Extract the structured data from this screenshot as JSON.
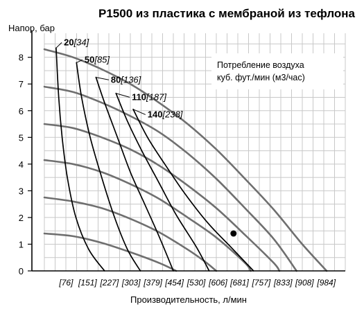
{
  "chart_data": {
    "type": "line",
    "title": "P1500 из пластика с мембраной из тефлона",
    "ylabel": "Напор, бар",
    "xlabel": "Производительность, л/мин",
    "yticks": [
      "0",
      "1",
      "2",
      "3",
      "4",
      "5",
      "6",
      "7",
      "8"
    ],
    "xticks": [
      "[76]",
      "[151]",
      "[227]",
      "[303]",
      "[379]",
      "[454]",
      "[530]",
      "[606]",
      "[681]",
      "[757]",
      "[833]",
      "[908]",
      "[984]"
    ],
    "xlim": [
      0,
      1050
    ],
    "ylim": [
      0,
      8.9
    ],
    "grid": true,
    "colors": {
      "pressure_curve": "#6f6f6f",
      "air_curve": "#000000",
      "grid": "#c8c8c8",
      "axis": "#000000"
    },
    "legend": {
      "position": "top-right",
      "lines": [
        "Потребление воздуха",
        "куб. фут./мин (м3/час)"
      ]
    },
    "operating_point": {
      "x": 660,
      "y": 1.4
    },
    "pressure_curves": [
      {
        "points": [
          [
            0,
            8.3
          ],
          [
            100,
            8.0
          ],
          [
            200,
            7.55
          ],
          [
            300,
            7.0
          ],
          [
            400,
            6.3
          ],
          [
            500,
            5.5
          ],
          [
            600,
            4.55
          ],
          [
            700,
            3.45
          ],
          [
            800,
            2.3
          ],
          [
            900,
            1.0
          ],
          [
            985,
            0
          ]
        ]
      },
      {
        "points": [
          [
            0,
            6.9
          ],
          [
            100,
            6.7
          ],
          [
            200,
            6.3
          ],
          [
            300,
            5.8
          ],
          [
            400,
            5.2
          ],
          [
            500,
            4.4
          ],
          [
            600,
            3.45
          ],
          [
            700,
            2.35
          ],
          [
            800,
            1.2
          ],
          [
            880,
            0
          ]
        ]
      },
      {
        "points": [
          [
            0,
            5.5
          ],
          [
            100,
            5.35
          ],
          [
            200,
            5.0
          ],
          [
            300,
            4.55
          ],
          [
            400,
            3.95
          ],
          [
            500,
            3.2
          ],
          [
            600,
            2.35
          ],
          [
            700,
            1.35
          ],
          [
            800,
            0.3
          ],
          [
            820,
            0
          ]
        ]
      },
      {
        "points": [
          [
            0,
            4.15
          ],
          [
            100,
            4.0
          ],
          [
            200,
            3.7
          ],
          [
            300,
            3.25
          ],
          [
            400,
            2.7
          ],
          [
            500,
            2.0
          ],
          [
            600,
            1.25
          ],
          [
            700,
            0.3
          ],
          [
            720,
            0
          ]
        ]
      },
      {
        "points": [
          [
            0,
            2.75
          ],
          [
            100,
            2.6
          ],
          [
            200,
            2.35
          ],
          [
            300,
            1.95
          ],
          [
            400,
            1.45
          ],
          [
            500,
            0.8
          ],
          [
            560,
            0.35
          ],
          [
            600,
            0
          ]
        ]
      },
      {
        "points": [
          [
            0,
            1.4
          ],
          [
            100,
            1.3
          ],
          [
            200,
            1.05
          ],
          [
            300,
            0.7
          ],
          [
            400,
            0.3
          ],
          [
            460,
            0
          ]
        ]
      }
    ],
    "air_curves": [
      {
        "label_bold": "20",
        "label_italic": "[34]",
        "label_at": [
          68,
          8.45
        ],
        "start": [
          41,
          8.35
        ],
        "points": [
          [
            41,
            8.35
          ],
          [
            50,
            6.5
          ],
          [
            62,
            5.0
          ],
          [
            80,
            3.5
          ],
          [
            110,
            2.0
          ],
          [
            155,
            0.8
          ],
          [
            210,
            0
          ]
        ]
      },
      {
        "label_bold": "50",
        "label_italic": "[85]",
        "label_at": [
          140,
          7.8
        ],
        "start": [
          112,
          7.8
        ],
        "points": [
          [
            112,
            7.8
          ],
          [
            130,
            6.5
          ],
          [
            160,
            5.0
          ],
          [
            200,
            3.5
          ],
          [
            245,
            2.0
          ],
          [
            290,
            0.8
          ],
          [
            335,
            0
          ]
        ]
      },
      {
        "label_bold": "80",
        "label_italic": "[136]",
        "label_at": [
          232,
          7.05
        ],
        "start": [
          180,
          7.25
        ],
        "points": [
          [
            180,
            7.25
          ],
          [
            210,
            6.3
          ],
          [
            255,
            5.0
          ],
          [
            300,
            3.7
          ],
          [
            350,
            2.5
          ],
          [
            400,
            1.3
          ],
          [
            450,
            0
          ]
        ]
      },
      {
        "label_bold": "110",
        "label_italic": "[187]",
        "label_at": [
          305,
          6.4
        ],
        "start": [
          250,
          6.65
        ],
        "points": [
          [
            250,
            6.65
          ],
          [
            290,
            5.6
          ],
          [
            340,
            4.5
          ],
          [
            400,
            3.3
          ],
          [
            460,
            2.1
          ],
          [
            530,
            0.9
          ],
          [
            575,
            0
          ]
        ]
      },
      {
        "label_bold": "140",
        "label_italic": "[238]",
        "label_at": [
          360,
          5.75
        ],
        "start": [
          310,
          6.05
        ],
        "points": [
          [
            310,
            6.05
          ],
          [
            360,
            5.0
          ],
          [
            420,
            4.0
          ],
          [
            490,
            2.9
          ],
          [
            570,
            1.8
          ],
          [
            650,
            0.9
          ],
          [
            730,
            0
          ]
        ]
      }
    ]
  }
}
